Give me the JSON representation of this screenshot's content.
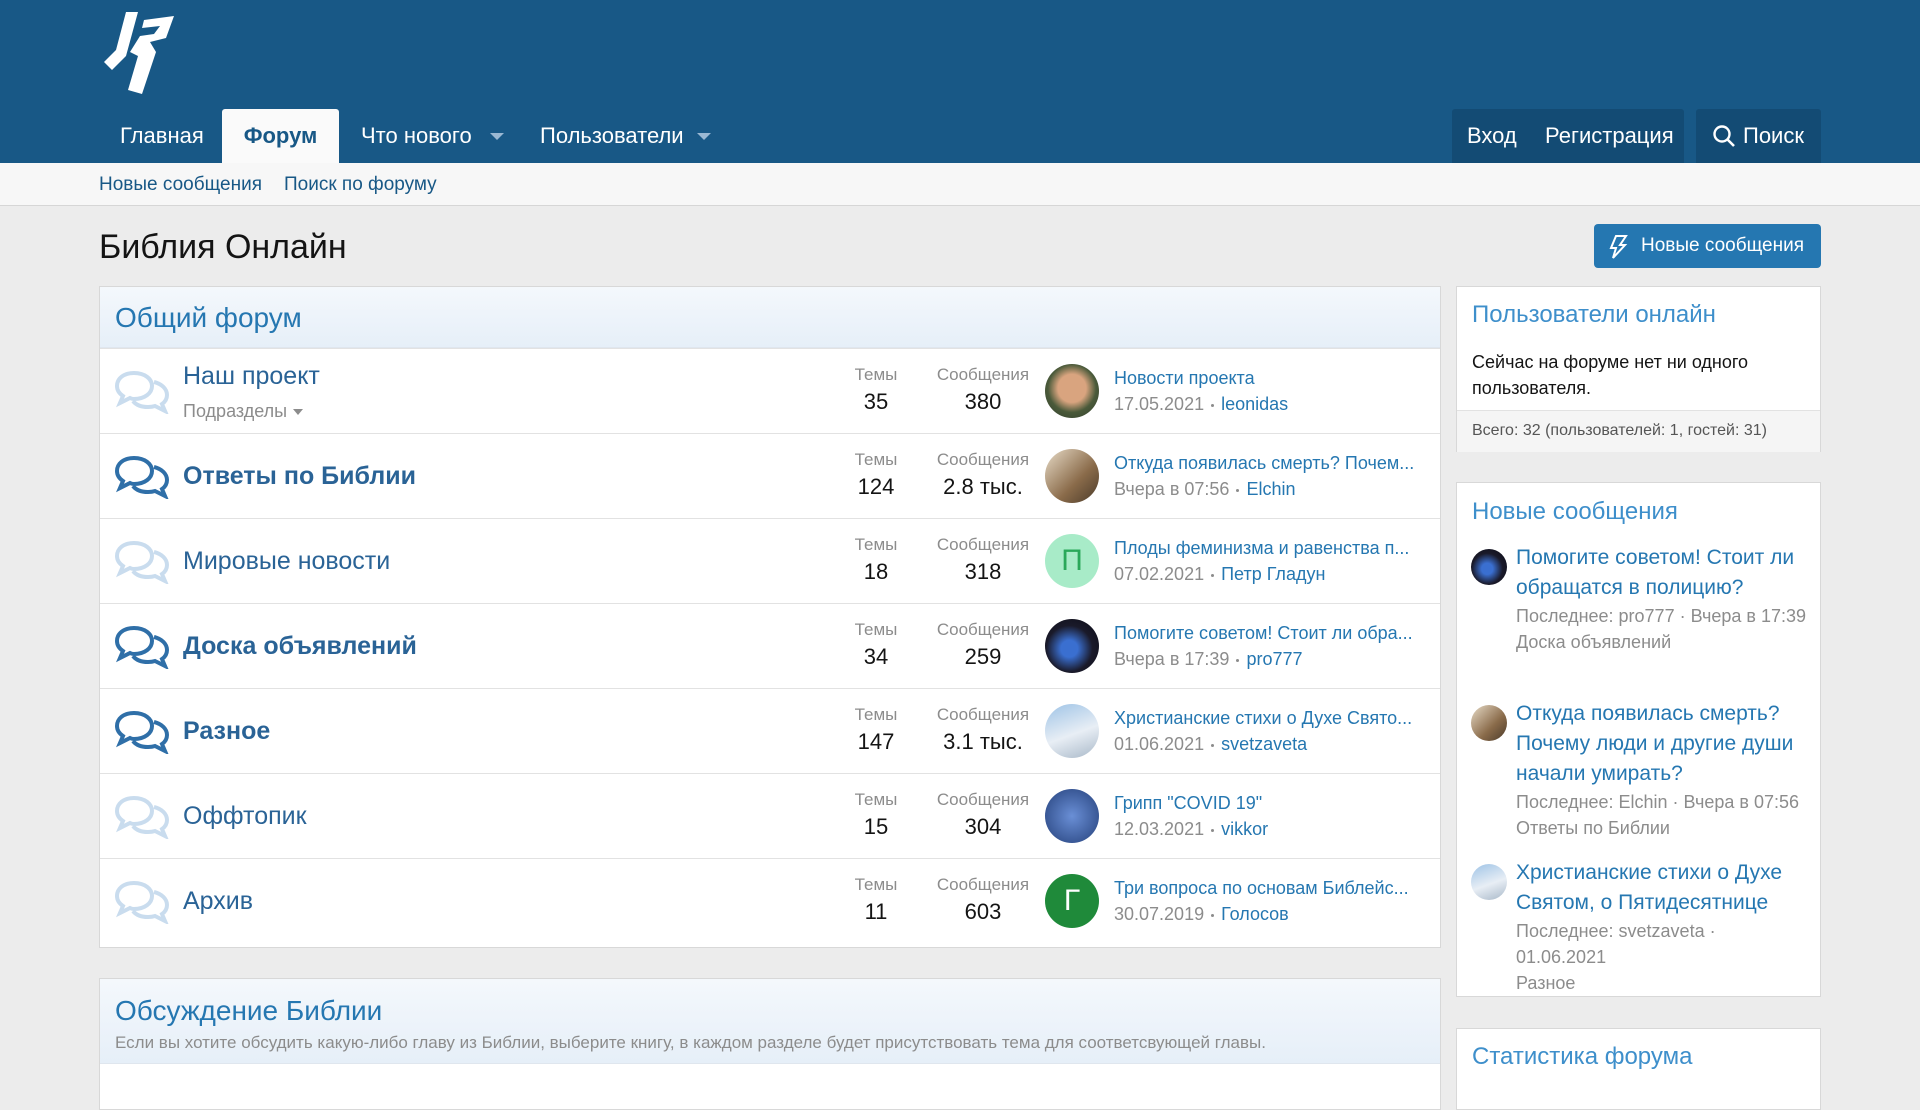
{
  "header": {
    "nav": [
      "Главная",
      "Форум",
      "Что нового",
      "Пользователи"
    ],
    "account": [
      "Вход",
      "Регистрация"
    ],
    "search": "Поиск"
  },
  "subnav": [
    "Новые сообщения",
    "Поиск по форуму"
  ],
  "page": {
    "title": "Библия Онлайн",
    "button": "Новые сообщения"
  },
  "stat_labels": [
    "Темы",
    "Сообщения"
  ],
  "categories": [
    {
      "title": "Общий форум",
      "forums": [
        {
          "name": "Наш проект",
          "sub": "Подразделы",
          "unread": false,
          "topics": 35,
          "posts": 380,
          "last": {
            "title": "Новости проекта",
            "date": "17.05.2021",
            "user": "leonidas"
          }
        },
        {
          "name": "Ответы по Библии",
          "unread": true,
          "topics": 124,
          "posts": "2.8 тыс.",
          "last": {
            "title": "Откуда появилась смерть? Почем...",
            "date": "Вчера в 07:56",
            "user": "Elchin"
          }
        },
        {
          "name": "Мировые новости",
          "unread": false,
          "topics": 18,
          "posts": 318,
          "last": {
            "title": "Плоды феминизма и равенства п...",
            "date": "07.02.2021",
            "user": "Петр Гладун",
            "letter": "П"
          }
        },
        {
          "name": "Доска объявлений",
          "unread": true,
          "topics": 34,
          "posts": 259,
          "last": {
            "title": "Помогите советом! Стоит ли обра...",
            "date": "Вчера в 17:39",
            "user": "pro777"
          }
        },
        {
          "name": "Разное",
          "unread": true,
          "topics": 147,
          "posts": "3.1 тыс.",
          "last": {
            "title": "Христианские стихи о Духе Свято...",
            "date": "01.06.2021",
            "user": "svetzaveta"
          }
        },
        {
          "name": "Оффтопик",
          "unread": false,
          "topics": 15,
          "posts": 304,
          "last": {
            "title": "Грипп \"COVID 19\"",
            "date": "12.03.2021",
            "user": "vikkor"
          }
        },
        {
          "name": "Архив",
          "unread": false,
          "topics": 11,
          "posts": 603,
          "last": {
            "title": "Три вопроса по основам Библейс...",
            "date": "30.07.2019",
            "user": "Голосов",
            "letter": "Г"
          }
        }
      ]
    },
    {
      "title": "Обсуждение Библии",
      "description": "Если вы хотите обсудить какую-либо главу из Библии, выберите книгу, в каждом разделе будет присутствовать тема для соответсвующей главы."
    }
  ],
  "sidebar": {
    "online": {
      "title": "Пользователи онлайн",
      "text": "Сейчас на форуме нет ни одного пользователя.",
      "footer": "Всего: 32 (пользователей: 1, гостей: 31)"
    },
    "new_posts": {
      "title": "Новые сообщения",
      "items": [
        {
          "title": "Помогите советом! Стоит ли обращатся в полицию?",
          "meta": "Последнее: pro777 · Вчера в 17:39",
          "forum": "Доска объявлений"
        },
        {
          "title": "Откуда появилась смерть? Почему люди и другие души начали умирать?",
          "meta": "Последнее: Elchin · Вчера в 07:56",
          "forum": "Ответы по Библии"
        },
        {
          "title": "Христианские стихи о Духе Святом, о Пятидесятнице",
          "meta": "Последнее: svetzaveta · 01.06.2021",
          "forum": "Разное"
        }
      ]
    },
    "stats": {
      "title": "Статистика форума"
    }
  }
}
